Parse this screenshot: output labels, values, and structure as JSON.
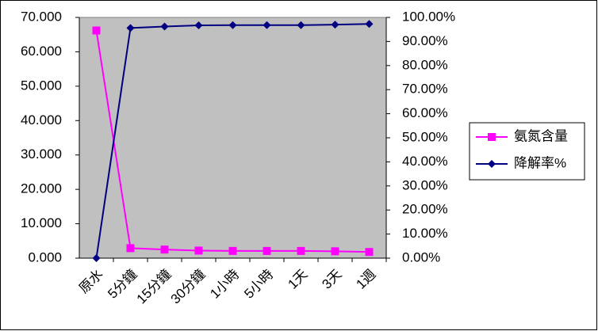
{
  "chart_data": {
    "type": "line",
    "categories": [
      "原水",
      "5分鐘",
      "15分鐘",
      "30分鐘",
      "1小時",
      "5小時",
      "1天",
      "3天",
      "1週"
    ],
    "series": [
      {
        "name": "氨氮含量",
        "color": "#ff00ff",
        "marker": "square",
        "values": [
          66.2,
          2.9,
          2.5,
          2.2,
          2.1,
          2.1,
          2.1,
          2.0,
          1.8
        ]
      },
      {
        "name": "降解率%",
        "color": "#000080",
        "marker": "diamond",
        "axis": "y2",
        "values": [
          0,
          95.6,
          96.2,
          96.7,
          96.8,
          96.8,
          96.8,
          97.0,
          97.3
        ]
      }
    ],
    "ylim": [
      0,
      70
    ],
    "yticks": [
      {
        "value": 0,
        "label": "0.000"
      },
      {
        "value": 10,
        "label": "10.000"
      },
      {
        "value": 20,
        "label": "20.000"
      },
      {
        "value": 30,
        "label": "30.000"
      },
      {
        "value": 40,
        "label": "40.000"
      },
      {
        "value": 50,
        "label": "50.000"
      },
      {
        "value": 60,
        "label": "60.000"
      },
      {
        "value": 70,
        "label": "70.000"
      }
    ],
    "y2lim": [
      0,
      100
    ],
    "y2ticks": [
      {
        "value": 0,
        "label": "0.00%"
      },
      {
        "value": 10,
        "label": "10.00%"
      },
      {
        "value": 20,
        "label": "20.00%"
      },
      {
        "value": 30,
        "label": "30.00%"
      },
      {
        "value": 40,
        "label": "40.00%"
      },
      {
        "value": 50,
        "label": "50.00%"
      },
      {
        "value": 60,
        "label": "60.00%"
      },
      {
        "value": 70,
        "label": "70.00%"
      },
      {
        "value": 80,
        "label": "80.00%"
      },
      {
        "value": 90,
        "label": "90.00%"
      },
      {
        "value": 100,
        "label": "100.00%"
      }
    ],
    "legend": "right",
    "plot_background": "#c0c0c0"
  }
}
